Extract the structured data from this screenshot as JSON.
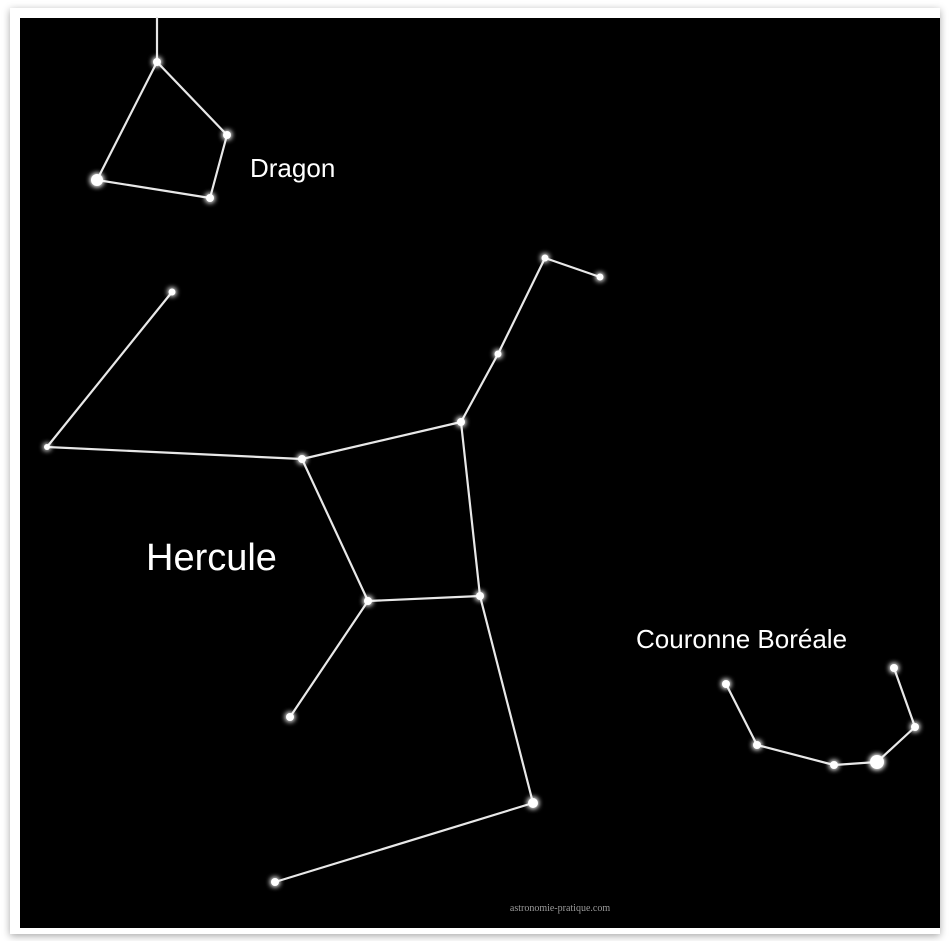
{
  "labels": {
    "dragon": "Dragon",
    "hercule": "Hercule",
    "couronne": "Couronne Boréale",
    "watermark": "astronomie-pratique.com"
  }
}
